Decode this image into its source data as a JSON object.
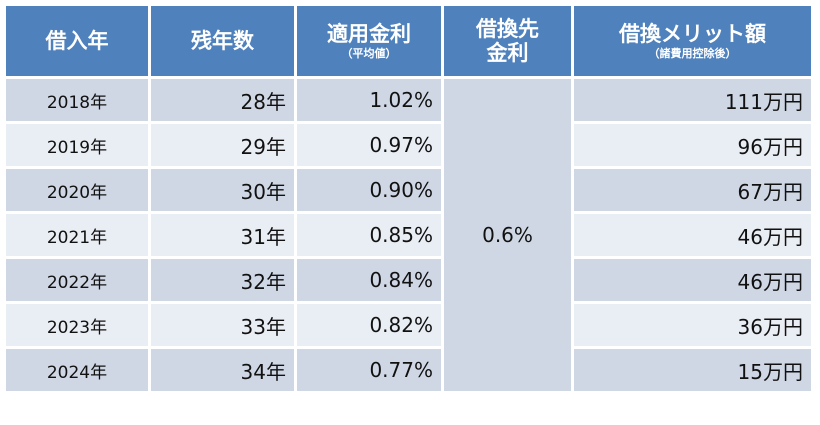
{
  "headers": {
    "year": "借入年",
    "remaining": "残年数",
    "applied_rate": "適用金利",
    "applied_rate_note": "（平均値）",
    "refi_rate_line1": "借換先",
    "refi_rate_line2": "金利",
    "merit": "借換メリット額",
    "merit_note": "（諸費用控除後）"
  },
  "refi_rate": "0.6%",
  "rows": [
    {
      "year": "2018年",
      "remaining": "28年",
      "rate": "1.02%",
      "merit": "111万円"
    },
    {
      "year": "2019年",
      "remaining": "29年",
      "rate": "0.97%",
      "merit": "96万円"
    },
    {
      "year": "2020年",
      "remaining": "30年",
      "rate": "0.90%",
      "merit": "67万円"
    },
    {
      "year": "2021年",
      "remaining": "31年",
      "rate": "0.85%",
      "merit": "46万円"
    },
    {
      "year": "2022年",
      "remaining": "32年",
      "rate": "0.84%",
      "merit": "46万円"
    },
    {
      "year": "2023年",
      "remaining": "33年",
      "rate": "0.82%",
      "merit": "36万円"
    },
    {
      "year": "2024年",
      "remaining": "34年",
      "rate": "0.77%",
      "merit": "15万円"
    }
  ],
  "colors": {
    "header": "#4f81bd",
    "row_odd": "#cfd7e5",
    "row_even": "#e9edf4"
  }
}
